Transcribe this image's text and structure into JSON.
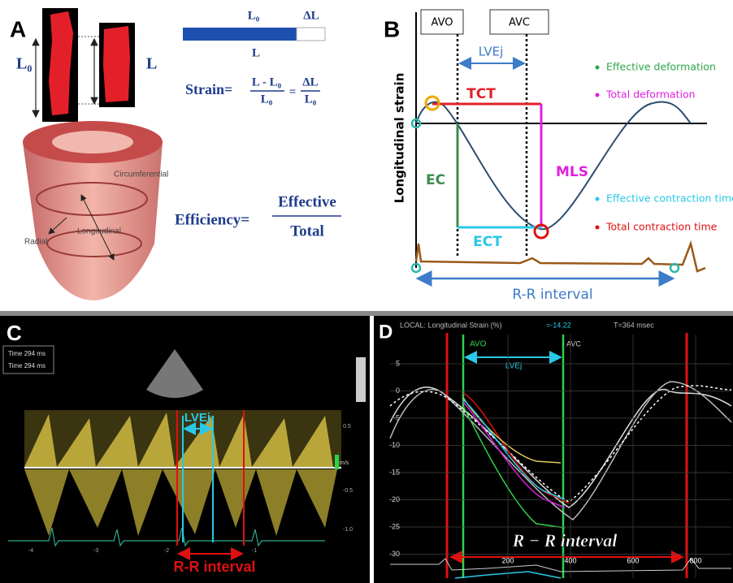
{
  "panel_a": {
    "label": "A",
    "cell_length_0": "L₀",
    "cell_length": "L",
    "bar_length_0": "L₀",
    "bar_delta": "ΔL",
    "bar_length": "L",
    "strain_label": "Strain=",
    "strain_num": "L - L₀",
    "strain_den": "L₀",
    "strain_equals": "=",
    "strain_num2": "ΔL",
    "strain_den2": "L₀",
    "circumferential": "Circumferential",
    "radial": "Radial",
    "longitudinal": "Longitudinal",
    "efficiency_label": "Efficiency=",
    "efficiency_num": "Effective",
    "efficiency_den": "Total"
  },
  "panel_b": {
    "label": "B",
    "avo": "AVO",
    "avc": "AVC",
    "lvej": "LVEj",
    "y_axis": "Longitudinal strain",
    "tct": "TCT",
    "ec": "EC",
    "mls": "MLS",
    "ect": "ECT",
    "rr": "R-R interval",
    "legend": [
      "Effective deformation",
      "Total deformation",
      "Effective contraction time",
      "Total contraction time"
    ]
  },
  "panel_c": {
    "label": "C",
    "time_1": "Time 294 ms",
    "time_2": "Time 294 ms",
    "lvej": "LVEj",
    "rr": "R-R  interval",
    "unit": "m/s",
    "y_ticks": [
      "0.5",
      "-0.5",
      "-1.0"
    ],
    "x_ticks": [
      "-4",
      "-3",
      "-2",
      "-1"
    ]
  },
  "panel_d": {
    "label": "D",
    "header": "LOCAL: Longitudinal Strain (%)",
    "header_value": "=-14.22",
    "time": "T=364 msec",
    "avo": "AVO",
    "avc": "AVC",
    "lvej": "LVEj",
    "rr": "R − R interval",
    "y_ticks": [
      "5",
      "0",
      "-5",
      "-10",
      "-15",
      "-20",
      "-25",
      "-30"
    ],
    "x_ticks": [
      "200",
      "400",
      "600",
      "800"
    ]
  }
}
